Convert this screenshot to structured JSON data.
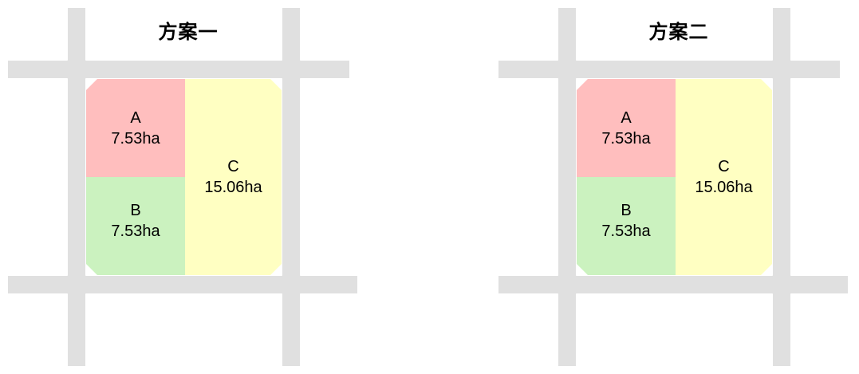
{
  "colors": {
    "bg": "#FFFFFF",
    "road": "#E0E0E0",
    "region_a": "#FFBEBE",
    "region_b": "#CBF2BF",
    "region_c": "#FFFFC2",
    "text": "#000000"
  },
  "diagrams": [
    {
      "title": "方案一",
      "regions": [
        {
          "label": "A",
          "area": "7.53ha"
        },
        {
          "label": "B",
          "area": "7.53ha"
        },
        {
          "label": "C",
          "area": "15.06ha"
        }
      ]
    },
    {
      "title": "方案二",
      "regions": [
        {
          "label": "A",
          "area": "7.53ha"
        },
        {
          "label": "B",
          "area": "7.53ha"
        },
        {
          "label": "C",
          "area": "15.06ha"
        }
      ]
    }
  ]
}
